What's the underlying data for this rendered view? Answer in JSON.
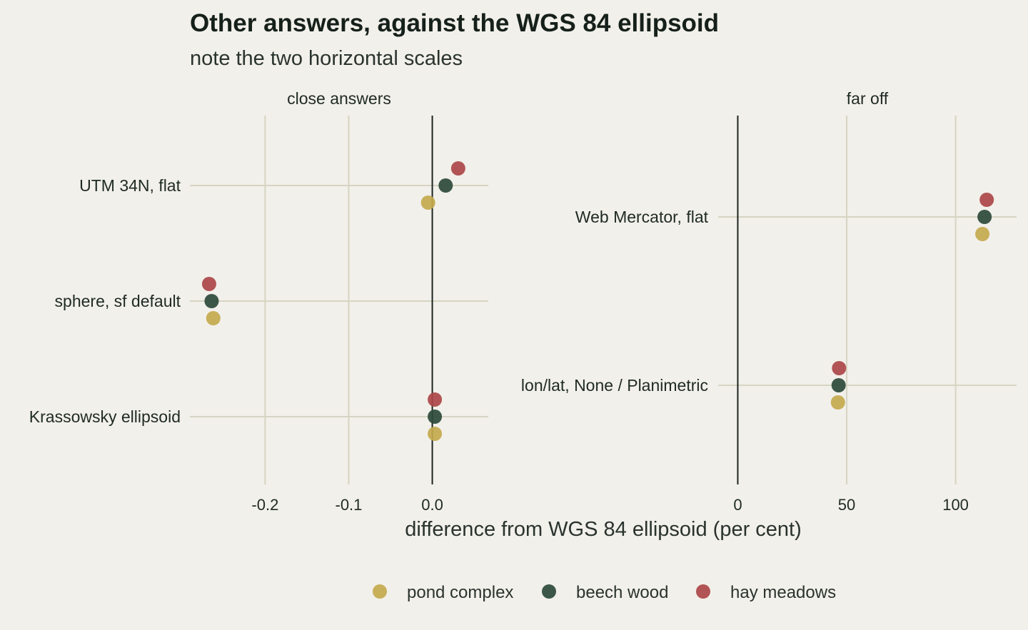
{
  "chart_data": {
    "type": "scatter",
    "title": "Other answers, against the WGS 84 ellipsoid",
    "subtitle": "note the two horizontal scales",
    "xlabel": "difference from WGS 84 ellipsoid (per cent)",
    "legend_position": "bottom",
    "series": [
      {
        "name": "pond complex",
        "color": "#c4a94d"
      },
      {
        "name": "beech wood",
        "color": "#2d4a3a"
      },
      {
        "name": "hay meadows",
        "color": "#ad4648"
      }
    ],
    "panels": [
      {
        "title": "close answers",
        "xlim": [
          -0.29,
          0.067
        ],
        "xticks": [
          -0.2,
          -0.1,
          0.0
        ],
        "xtick_labels": [
          "-0.2",
          "-0.1",
          "0.0"
        ],
        "categories": [
          "UTM 34N, flat",
          "sphere, sf default",
          "Krassowsky ellipsoid"
        ],
        "points": [
          {
            "category": "UTM 34N, flat",
            "series": "pond complex",
            "x": -0.005
          },
          {
            "category": "UTM 34N, flat",
            "series": "beech wood",
            "x": 0.016
          },
          {
            "category": "UTM 34N, flat",
            "series": "hay meadows",
            "x": 0.031
          },
          {
            "category": "sphere, sf default",
            "series": "pond complex",
            "x": -0.262
          },
          {
            "category": "sphere, sf default",
            "series": "beech wood",
            "x": -0.264
          },
          {
            "category": "sphere, sf default",
            "series": "hay meadows",
            "x": -0.267
          },
          {
            "category": "Krassowsky ellipsoid",
            "series": "pond complex",
            "x": 0.003
          },
          {
            "category": "Krassowsky ellipsoid",
            "series": "beech wood",
            "x": 0.003
          },
          {
            "category": "Krassowsky ellipsoid",
            "series": "hay meadows",
            "x": 0.003
          }
        ]
      },
      {
        "title": "far off",
        "xlim": [
          -9,
          128
        ],
        "xticks": [
          0,
          50,
          100
        ],
        "xtick_labels": [
          "0",
          "50",
          "100"
        ],
        "categories": [
          "Web Mercator, flat",
          "lon/lat, None / Planimetric"
        ],
        "points": [
          {
            "category": "Web Mercator, flat",
            "series": "pond complex",
            "x": 112.3
          },
          {
            "category": "Web Mercator, flat",
            "series": "beech wood",
            "x": 113.3
          },
          {
            "category": "Web Mercator, flat",
            "series": "hay meadows",
            "x": 114.3
          },
          {
            "category": "lon/lat, None / Planimetric",
            "series": "pond complex",
            "x": 46.0
          },
          {
            "category": "lon/lat, None / Planimetric",
            "series": "beech wood",
            "x": 46.3
          },
          {
            "category": "lon/lat, None / Planimetric",
            "series": "hay meadows",
            "x": 46.5
          }
        ]
      }
    ]
  }
}
